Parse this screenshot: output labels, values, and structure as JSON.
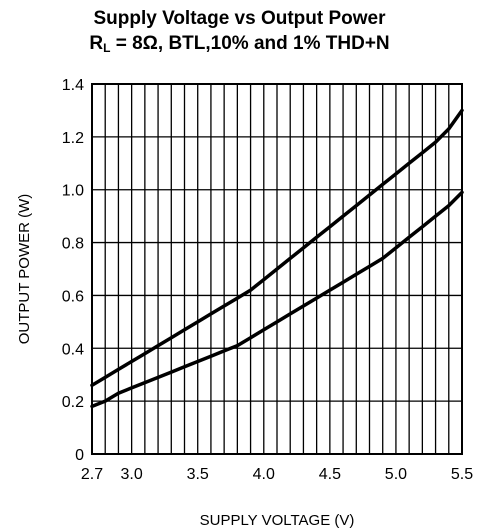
{
  "chart_data": {
    "type": "line",
    "title_line1": "Supply Voltage vs Output Power",
    "title_line2_prefix": "R",
    "title_line2_sub": "L",
    "title_line2_suffix": " = 8Ω, BTL,10% and 1% THD+N",
    "xlabel": "SUPPLY VOLTAGE (V)",
    "ylabel": "OUTPUT POWER (W)",
    "xlim": [
      2.7,
      5.5
    ],
    "ylim": [
      0,
      1.4
    ],
    "x_ticks": [
      2.7,
      3.0,
      3.5,
      4.0,
      4.5,
      5.0,
      5.5
    ],
    "x_tick_labels": [
      "2.7",
      "3.0",
      "3.5",
      "4.0",
      "4.5",
      "5.0",
      "5.5"
    ],
    "y_ticks": [
      0,
      0.2,
      0.4,
      0.6,
      0.8,
      1.0,
      1.2,
      1.4
    ],
    "y_tick_labels": [
      "0",
      "0.2",
      "0.4",
      "0.6",
      "0.8",
      "1.0",
      "1.2",
      "1.4"
    ],
    "x_grid_step": 0.1,
    "grid": true,
    "series": [
      {
        "x": [
          2.7,
          2.8,
          2.9,
          3.0,
          3.1,
          3.2,
          3.3,
          3.4,
          3.5,
          3.6,
          3.7,
          3.8,
          3.9,
          4.0,
          4.1,
          4.2,
          4.3,
          4.4,
          4.5,
          4.6,
          4.7,
          4.8,
          4.9,
          5.0,
          5.1,
          5.2,
          5.3,
          5.4,
          5.5
        ],
        "values": [
          0.26,
          0.29,
          0.32,
          0.35,
          0.38,
          0.41,
          0.44,
          0.47,
          0.5,
          0.53,
          0.56,
          0.59,
          0.62,
          0.66,
          0.7,
          0.74,
          0.78,
          0.82,
          0.86,
          0.9,
          0.94,
          0.98,
          1.02,
          1.06,
          1.1,
          1.14,
          1.18,
          1.23,
          1.3
        ]
      },
      {
        "x": [
          2.7,
          2.8,
          2.9,
          3.0,
          3.1,
          3.2,
          3.3,
          3.4,
          3.5,
          3.6,
          3.7,
          3.8,
          3.9,
          4.0,
          4.1,
          4.2,
          4.3,
          4.4,
          4.5,
          4.6,
          4.7,
          4.8,
          4.9,
          5.0,
          5.1,
          5.2,
          5.3,
          5.4,
          5.5
        ],
        "values": [
          0.18,
          0.2,
          0.23,
          0.25,
          0.27,
          0.29,
          0.31,
          0.33,
          0.35,
          0.37,
          0.39,
          0.41,
          0.44,
          0.47,
          0.5,
          0.53,
          0.56,
          0.59,
          0.62,
          0.65,
          0.68,
          0.71,
          0.74,
          0.78,
          0.82,
          0.86,
          0.9,
          0.94,
          0.99
        ]
      }
    ]
  }
}
